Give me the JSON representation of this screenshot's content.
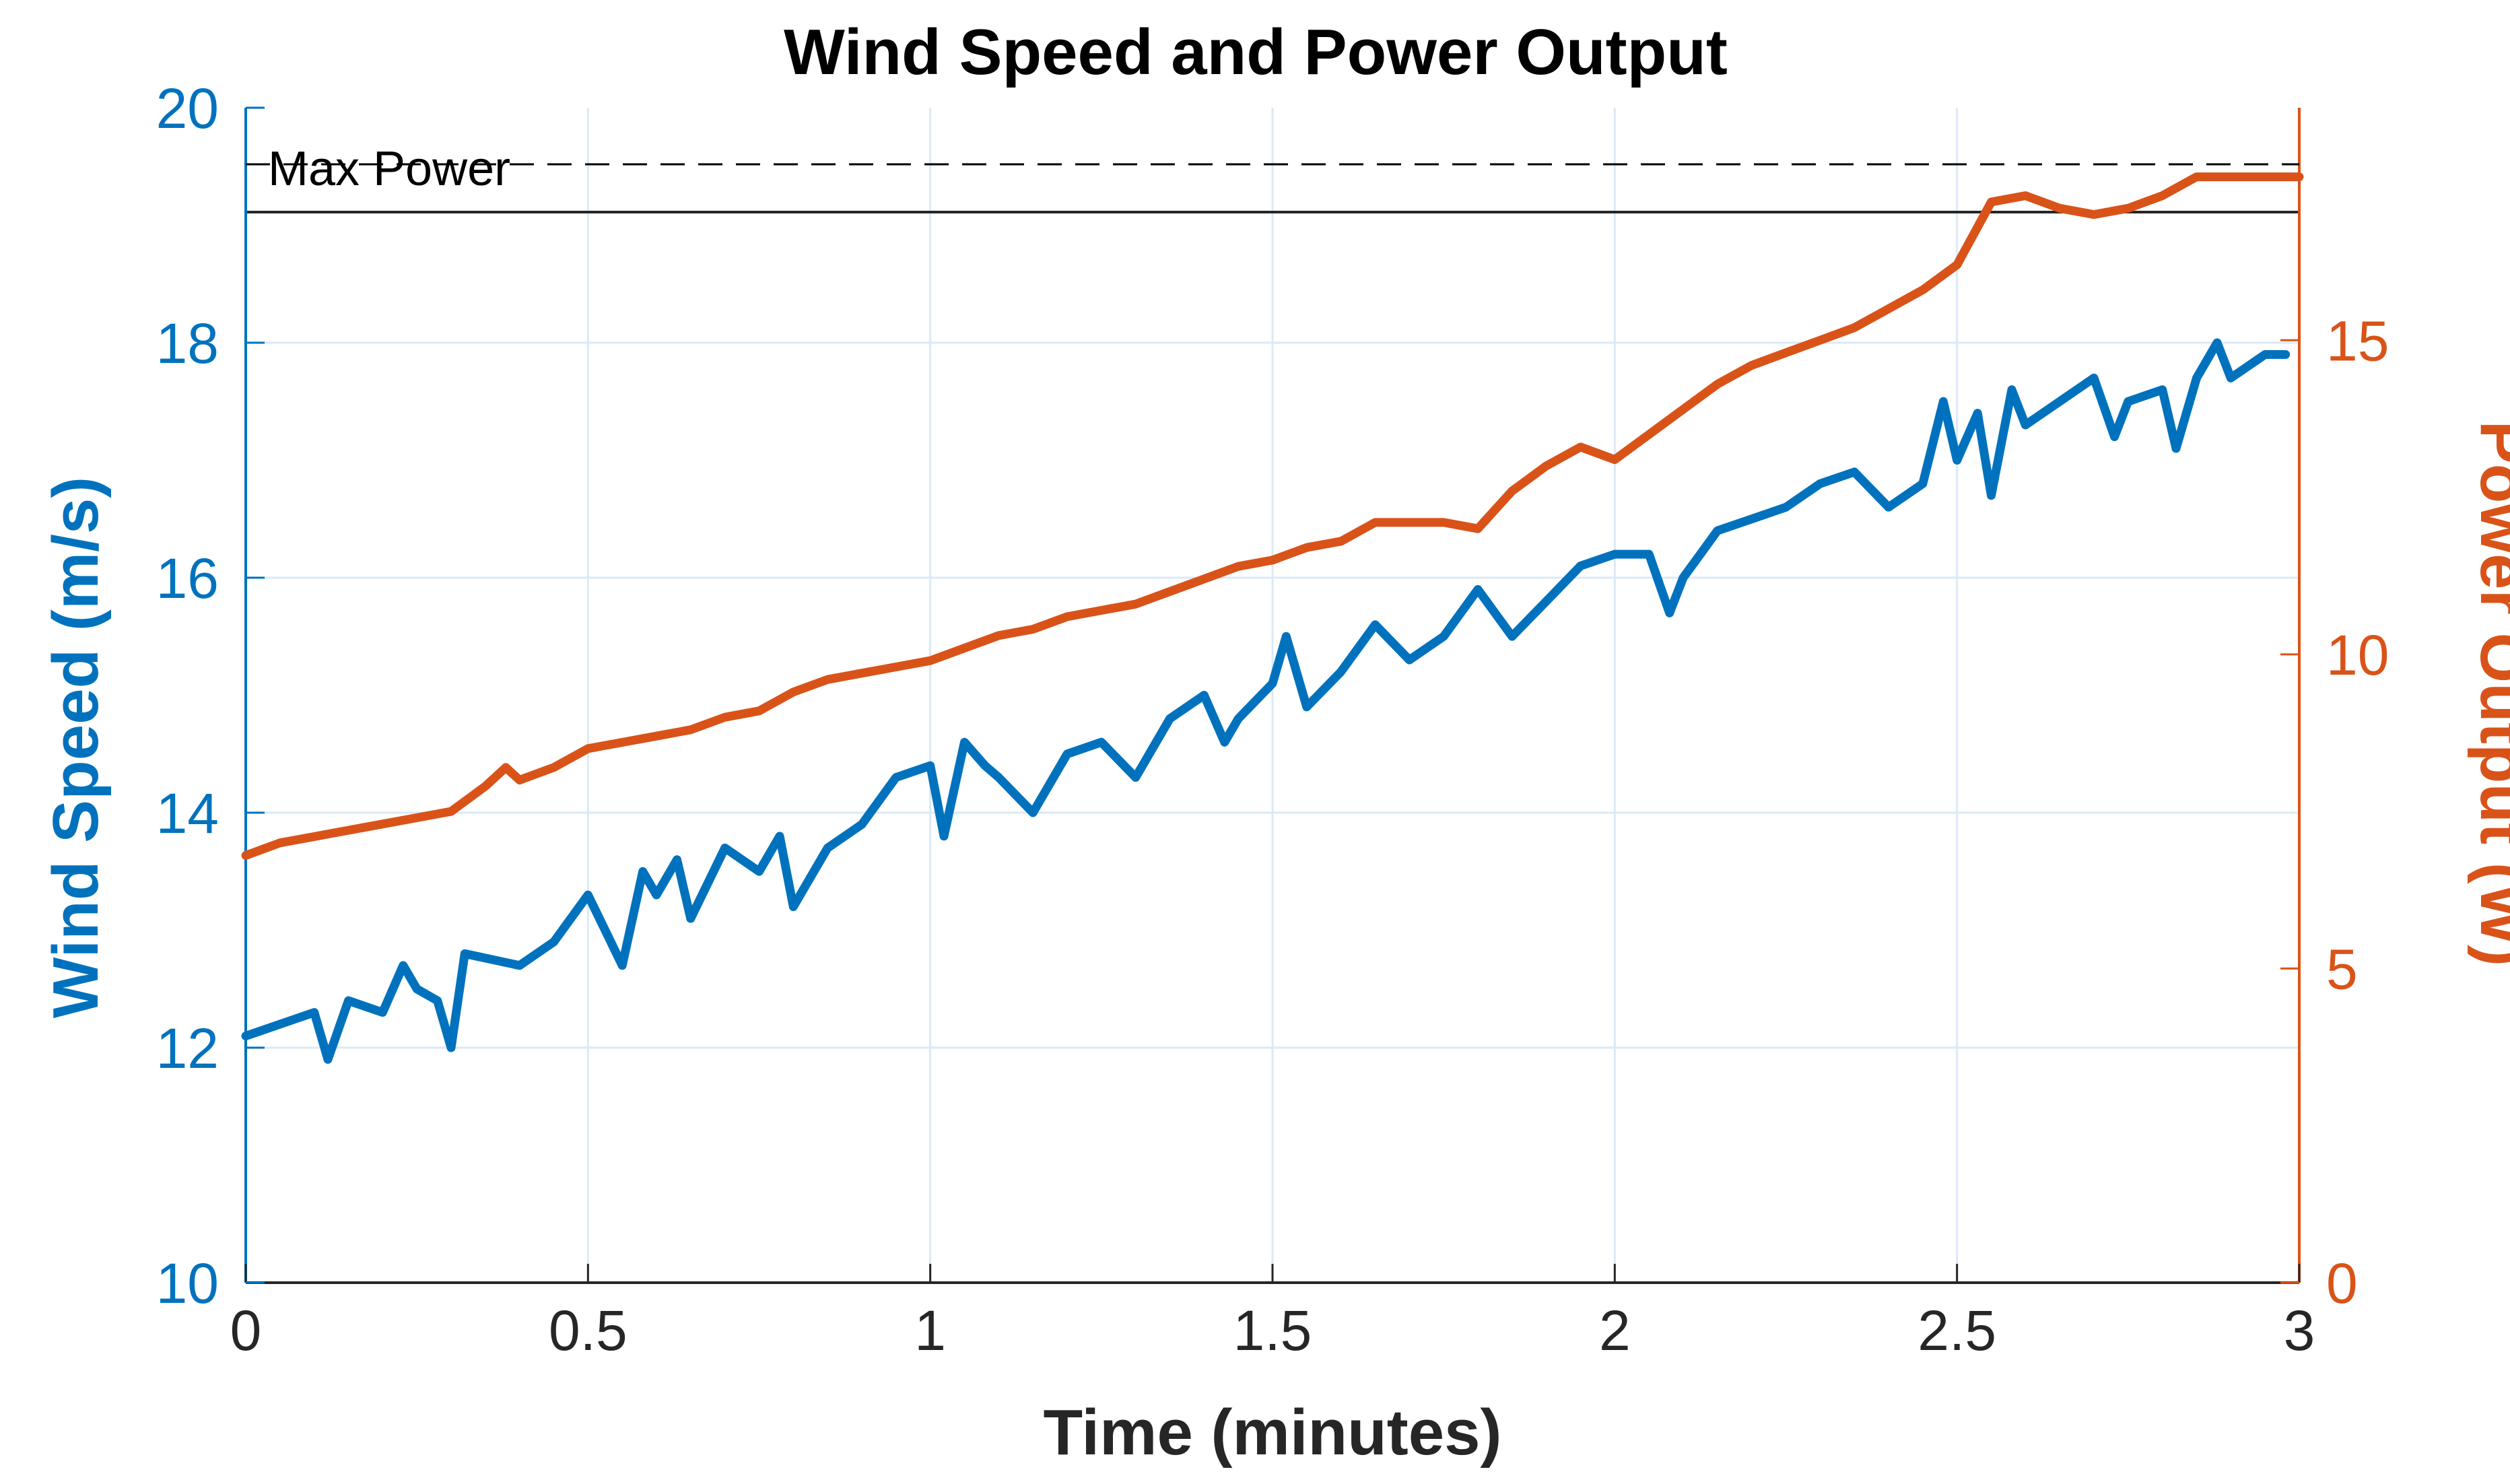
{
  "chart_data": {
    "type": "line",
    "title": "Wind Speed and Power Output",
    "xlabel": "Time (minutes)",
    "ylabel_left": "Wind Speed (m/s)",
    "ylabel_right": "Power Output (W)",
    "xlim": [
      0,
      3
    ],
    "ylim_left": [
      10,
      20
    ],
    "ylim_right": [
      0,
      18.7
    ],
    "x_ticks": [
      "0",
      "0.5",
      "1",
      "1.5",
      "2",
      "2.5",
      "3"
    ],
    "y_left_ticks": [
      "10",
      "12",
      "14",
      "16",
      "18",
      "20"
    ],
    "y_right_ticks": [
      "0",
      "5",
      "10",
      "15"
    ],
    "grid": true,
    "reference_line": {
      "label": "Max Power",
      "axis": "right",
      "value": 17.8,
      "style": "dashed",
      "color": "#000000"
    },
    "series": [
      {
        "name": "Wind Speed",
        "axis": "left",
        "color": "#0072BD",
        "x": [
          0,
          0.05,
          0.1,
          0.12,
          0.15,
          0.2,
          0.23,
          0.25,
          0.28,
          0.3,
          0.32,
          0.4,
          0.45,
          0.5,
          0.55,
          0.58,
          0.6,
          0.63,
          0.65,
          0.7,
          0.75,
          0.78,
          0.8,
          0.85,
          0.9,
          0.95,
          1.0,
          1.02,
          1.05,
          1.08,
          1.1,
          1.15,
          1.2,
          1.25,
          1.3,
          1.35,
          1.4,
          1.43,
          1.45,
          1.5,
          1.52,
          1.55,
          1.6,
          1.65,
          1.7,
          1.75,
          1.8,
          1.85,
          1.9,
          1.95,
          2.0,
          2.05,
          2.08,
          2.1,
          2.15,
          2.2,
          2.25,
          2.3,
          2.35,
          2.4,
          2.45,
          2.48,
          2.5,
          2.53,
          2.55,
          2.58,
          2.6,
          2.65,
          2.7,
          2.73,
          2.75,
          2.8,
          2.82,
          2.85,
          2.88,
          2.9,
          2.95,
          2.98
        ],
        "values": [
          12.1,
          12.2,
          12.3,
          11.9,
          12.4,
          12.3,
          12.7,
          12.5,
          12.4,
          12.0,
          12.8,
          12.7,
          12.9,
          13.3,
          12.7,
          13.5,
          13.3,
          13.6,
          13.1,
          13.7,
          13.5,
          13.8,
          13.2,
          13.7,
          13.9,
          14.3,
          14.4,
          13.8,
          14.6,
          14.4,
          14.3,
          14.0,
          14.5,
          14.6,
          14.3,
          14.8,
          15.0,
          14.6,
          14.8,
          15.1,
          15.5,
          14.9,
          15.2,
          15.6,
          15.3,
          15.5,
          15.9,
          15.5,
          15.8,
          16.1,
          16.2,
          16.2,
          15.7,
          16.0,
          16.4,
          16.5,
          16.6,
          16.8,
          16.9,
          16.6,
          16.8,
          17.5,
          17.0,
          17.4,
          16.7,
          17.6,
          17.3,
          17.5,
          17.7,
          17.2,
          17.5,
          17.6,
          17.1,
          17.7,
          18.0,
          17.7,
          17.9,
          17.9
        ]
      },
      {
        "name": "Power Output",
        "axis": "right",
        "color": "#D95319",
        "x": [
          0,
          0.05,
          0.1,
          0.15,
          0.2,
          0.25,
          0.3,
          0.35,
          0.38,
          0.4,
          0.45,
          0.5,
          0.55,
          0.6,
          0.65,
          0.7,
          0.75,
          0.8,
          0.85,
          0.9,
          0.95,
          1.0,
          1.05,
          1.1,
          1.15,
          1.2,
          1.25,
          1.3,
          1.35,
          1.4,
          1.45,
          1.5,
          1.55,
          1.6,
          1.65,
          1.7,
          1.75,
          1.8,
          1.85,
          1.9,
          1.95,
          2.0,
          2.05,
          2.1,
          2.15,
          2.2,
          2.25,
          2.3,
          2.35,
          2.4,
          2.45,
          2.5,
          2.55,
          2.6,
          2.65,
          2.7,
          2.75,
          2.8,
          2.85,
          2.9,
          2.95,
          3.0
        ],
        "values": [
          6.8,
          7.0,
          7.1,
          7.2,
          7.3,
          7.4,
          7.5,
          7.9,
          8.2,
          8.0,
          8.2,
          8.5,
          8.6,
          8.7,
          8.8,
          9.0,
          9.1,
          9.4,
          9.6,
          9.7,
          9.8,
          9.9,
          10.1,
          10.3,
          10.4,
          10.6,
          10.7,
          10.8,
          11.0,
          11.2,
          11.4,
          11.5,
          11.7,
          11.8,
          12.1,
          12.1,
          12.1,
          12.0,
          12.6,
          13.0,
          13.3,
          13.1,
          13.5,
          13.9,
          14.3,
          14.6,
          14.8,
          15.0,
          15.2,
          15.5,
          15.8,
          16.2,
          17.2,
          17.3,
          17.1,
          17.0,
          17.1,
          17.3,
          17.6,
          17.6,
          17.6,
          17.6
        ]
      }
    ]
  }
}
